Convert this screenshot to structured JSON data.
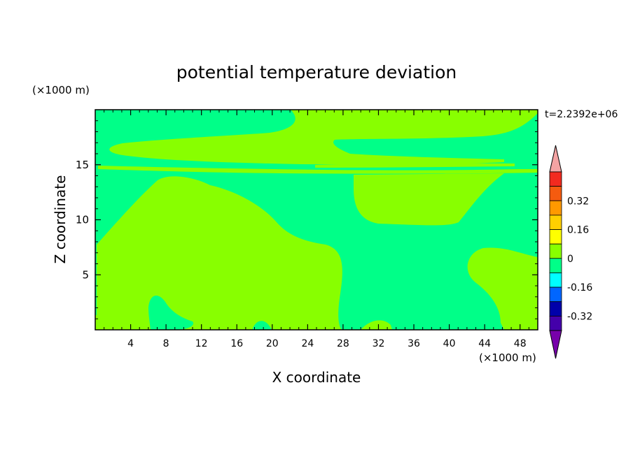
{
  "chart_data": {
    "type": "heatmap",
    "title": "potential temperature deviation",
    "xlabel": "X coordinate",
    "ylabel": "Z coordinate",
    "x_unit": "(×1000 m)",
    "y_unit": "(×1000 m)",
    "time_label": "t=2.2392e+06",
    "xlim": [
      0,
      50
    ],
    "ylim": [
      0,
      20
    ],
    "x_ticks": [
      4,
      8,
      12,
      16,
      20,
      24,
      28,
      32,
      36,
      40,
      44,
      48
    ],
    "y_ticks": [
      5,
      10,
      15
    ],
    "colorbar": {
      "bins": [
        {
          "color": "#f4a3a3",
          "label": ""
        },
        {
          "color": "#f22a1f",
          "label": ""
        },
        {
          "color": "#f55b0f",
          "label": "0.32"
        },
        {
          "color": "#ff9900",
          "label": ""
        },
        {
          "color": "#ffd000",
          "label": "0.16"
        },
        {
          "color": "#ffff00",
          "label": ""
        },
        {
          "color": "#88ff00",
          "label": "0"
        },
        {
          "color": "#00ff88",
          "label": ""
        },
        {
          "color": "#00ffff",
          "label": "-0.16"
        },
        {
          "color": "#0066ff",
          "label": ""
        },
        {
          "color": "#0000aa",
          "label": "-0.32"
        },
        {
          "color": "#4400aa",
          "label": ""
        },
        {
          "color": "#7700aa",
          "label": ""
        }
      ]
    },
    "regions": {
      "background_level": "0 to -0.08",
      "background_color": "#00ff88",
      "positive_level": "0 to 0.08",
      "positive_color": "#88ff00"
    }
  }
}
